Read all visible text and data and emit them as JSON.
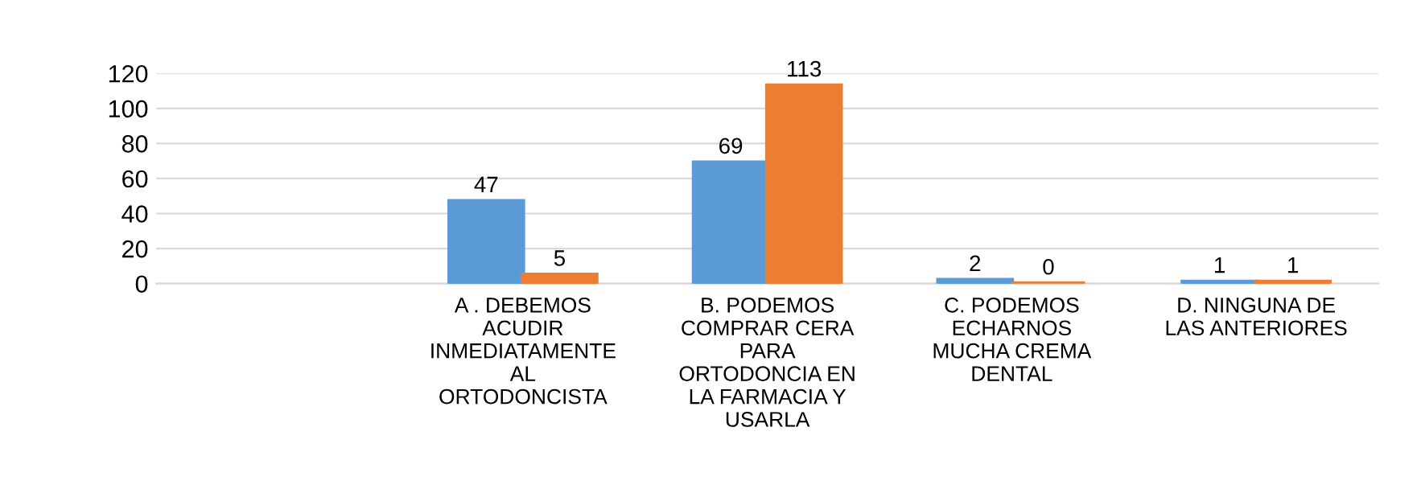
{
  "chart_data": {
    "type": "bar",
    "categories": [
      null,
      "A . DEBEMOS\nACUDIR\nINMEDIATAMENTE\nAL\nORTODONCISTA",
      "B. PODEMOS\nCOMPRAR CERA\nPARA\nORTODONCIA EN\nLA FARMACIA Y\nUSARLA",
      "C. PODEMOS\nECHARNOS\nMUCHA CREMA\nDENTAL",
      "D. NINGUNA DE\nLAS ANTERIORES"
    ],
    "series": [
      {
        "color": "#5b9bd5",
        "values": [
          null,
          47,
          69,
          2,
          1
        ]
      },
      {
        "color": "#ed7d31",
        "values": [
          null,
          5,
          113,
          0,
          1
        ]
      }
    ],
    "ylim": [
      0,
      120
    ],
    "yticks": [
      0,
      20,
      40,
      60,
      80,
      100,
      120
    ],
    "grid": "y",
    "data_labels": true
  }
}
